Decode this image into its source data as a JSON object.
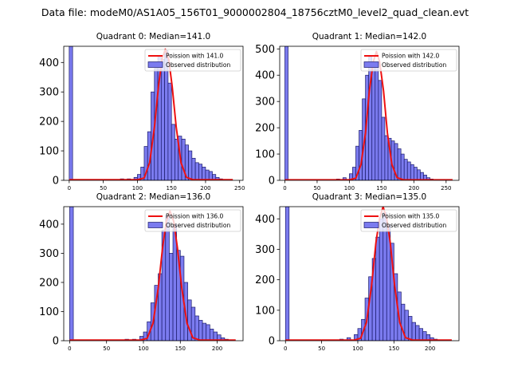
{
  "suptitle": "Data file: modeM0/AS1A05_156T01_9000002804_18756cztM0_level2_quad_clean.evt",
  "colors": {
    "bar_fill": "#7b7bef",
    "bar_edge": "#1a1a6a",
    "poisson_line": "#ee1111",
    "axis": "#000000"
  },
  "chart_data": [
    {
      "type": "bar",
      "title": "Quadrant 0: Median=141.0",
      "xlim": [
        -8,
        255
      ],
      "ylim": [
        0,
        455
      ],
      "xticks": [
        0,
        50,
        100,
        150,
        200,
        250
      ],
      "yticks": [
        0,
        100,
        200,
        300,
        400
      ],
      "bin_width": 5,
      "bins_left": [
        0,
        75,
        85,
        95,
        100,
        105,
        110,
        115,
        120,
        125,
        130,
        135,
        140,
        145,
        150,
        155,
        160,
        165,
        170,
        175,
        180,
        185,
        190,
        195,
        200,
        205,
        210,
        215,
        220,
        225
      ],
      "counts": [
        455,
        5,
        5,
        10,
        20,
        45,
        115,
        165,
        300,
        380,
        420,
        410,
        440,
        330,
        190,
        140,
        150,
        140,
        120,
        100,
        75,
        60,
        55,
        45,
        35,
        30,
        20,
        10,
        5,
        2
      ],
      "poisson_lambda": 141.0,
      "poisson_x": [
        0,
        100,
        110,
        118,
        125,
        131,
        136,
        141,
        146,
        151,
        157,
        164,
        172,
        182,
        240
      ],
      "poisson_y": [
        2,
        2,
        8,
        60,
        180,
        320,
        410,
        445,
        410,
        320,
        180,
        60,
        10,
        2,
        2
      ],
      "legend": [
        "Poission with 141.0",
        "Observed distribution"
      ]
    },
    {
      "type": "bar",
      "title": "Quadrant 1: Median=142.0",
      "xlim": [
        -8,
        270
      ],
      "ylim": [
        0,
        510
      ],
      "xticks": [
        0,
        50,
        100,
        150,
        200,
        250
      ],
      "yticks": [
        0,
        100,
        200,
        300,
        400,
        500
      ],
      "bin_width": 5,
      "bins_left": [
        0,
        80,
        90,
        100,
        105,
        110,
        115,
        120,
        125,
        130,
        135,
        140,
        145,
        150,
        155,
        160,
        165,
        170,
        175,
        180,
        185,
        190,
        195,
        200,
        205,
        210,
        215,
        220,
        225,
        230
      ],
      "counts": [
        510,
        5,
        10,
        25,
        50,
        130,
        190,
        310,
        400,
        470,
        430,
        430,
        380,
        240,
        170,
        160,
        150,
        140,
        120,
        100,
        80,
        70,
        60,
        50,
        40,
        30,
        20,
        10,
        5,
        3
      ],
      "poisson_lambda": 142.0,
      "poisson_x": [
        0,
        100,
        110,
        118,
        125,
        131,
        137,
        142,
        147,
        153,
        159,
        166,
        174,
        184,
        260
      ],
      "poisson_y": [
        2,
        2,
        8,
        60,
        180,
        340,
        450,
        490,
        450,
        340,
        180,
        60,
        10,
        2,
        2
      ],
      "legend": [
        "Poission with 142.0",
        "Observed distribution"
      ]
    },
    {
      "type": "bar",
      "title": "Quadrant 2: Median=136.0",
      "xlim": [
        -8,
        235
      ],
      "ylim": [
        0,
        460
      ],
      "xticks": [
        0,
        50,
        100,
        150,
        200
      ],
      "yticks": [
        0,
        100,
        200,
        300,
        400
      ],
      "bin_width": 5,
      "bins_left": [
        0,
        75,
        85,
        95,
        100,
        105,
        110,
        115,
        120,
        125,
        130,
        135,
        140,
        145,
        150,
        155,
        160,
        165,
        170,
        175,
        180,
        185,
        190,
        195,
        200,
        205,
        210,
        215
      ],
      "counts": [
        460,
        5,
        5,
        15,
        30,
        65,
        130,
        190,
        230,
        380,
        430,
        300,
        400,
        310,
        290,
        200,
        140,
        115,
        85,
        70,
        60,
        55,
        40,
        30,
        20,
        10,
        5,
        2
      ],
      "poisson_lambda": 136.0,
      "poisson_x": [
        0,
        96,
        105,
        113,
        120,
        126,
        131,
        136,
        141,
        146,
        152,
        159,
        167,
        177,
        225
      ],
      "poisson_y": [
        2,
        2,
        8,
        60,
        180,
        320,
        410,
        445,
        410,
        320,
        180,
        60,
        10,
        2,
        2
      ],
      "legend": [
        "Poission with 136.0",
        "Observed distribution"
      ]
    },
    {
      "type": "bar",
      "title": "Quadrant 3: Median=135.0",
      "xlim": [
        -8,
        240
      ],
      "ylim": [
        0,
        440
      ],
      "xticks": [
        0,
        50,
        100,
        150,
        200
      ],
      "yticks": [
        0,
        100,
        200,
        300,
        400
      ],
      "bin_width": 5,
      "bins_left": [
        0,
        75,
        85,
        95,
        100,
        105,
        110,
        115,
        120,
        125,
        130,
        135,
        140,
        145,
        150,
        155,
        160,
        165,
        170,
        175,
        180,
        185,
        190,
        195,
        200,
        205,
        210
      ],
      "counts": [
        440,
        5,
        10,
        20,
        40,
        70,
        140,
        210,
        270,
        340,
        400,
        420,
        380,
        320,
        220,
        160,
        120,
        100,
        80,
        60,
        50,
        40,
        30,
        20,
        10,
        5,
        2
      ],
      "poisson_lambda": 135.0,
      "poisson_x": [
        0,
        95,
        104,
        112,
        119,
        125,
        130,
        135,
        140,
        145,
        151,
        158,
        166,
        176,
        230
      ],
      "poisson_y": [
        2,
        2,
        8,
        60,
        180,
        320,
        400,
        440,
        400,
        320,
        180,
        60,
        10,
        2,
        2
      ],
      "legend": [
        "Poission with 135.0",
        "Observed distribution"
      ]
    }
  ]
}
